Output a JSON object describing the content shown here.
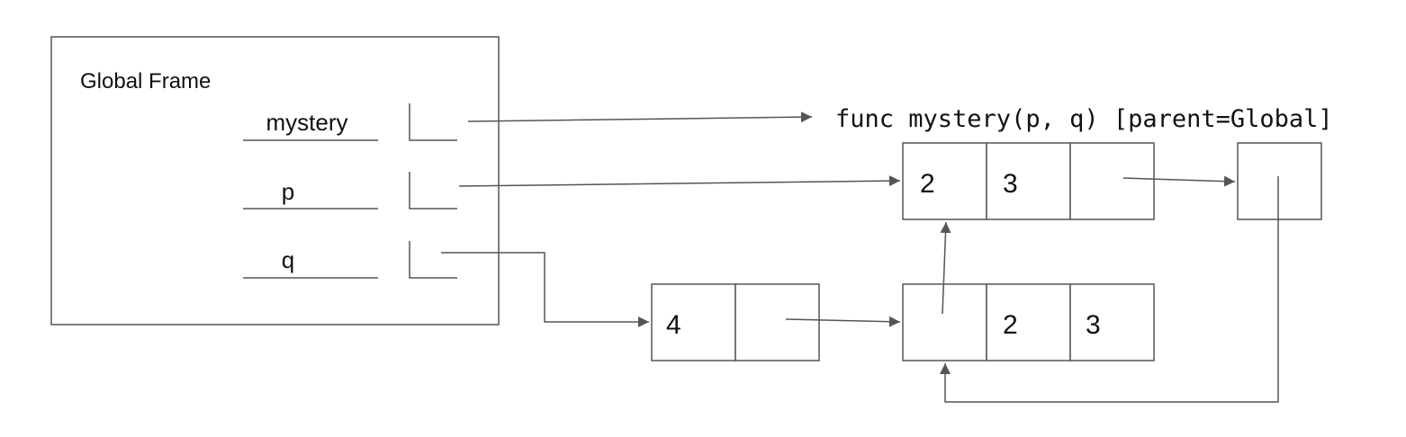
{
  "global_frame": {
    "title": "Global Frame",
    "variables": [
      {
        "name": "mystery"
      },
      {
        "name": "p"
      },
      {
        "name": "q"
      }
    ]
  },
  "function_object": {
    "label": "func mystery(p, q) [parent=Global]"
  },
  "lists": {
    "p_list": {
      "values": [
        "2",
        "3",
        ""
      ]
    },
    "p_tail": {
      "values": [
        ""
      ]
    },
    "q_list": {
      "values": [
        "4",
        ""
      ]
    },
    "shared_list": {
      "values": [
        "",
        "2",
        "3"
      ]
    }
  },
  "colors": {
    "stroke": "#555555",
    "text": "#111111"
  }
}
